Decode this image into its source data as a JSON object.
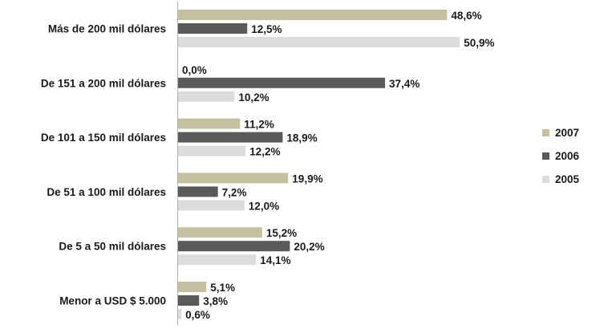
{
  "chart_data": {
    "type": "bar",
    "orientation": "horizontal",
    "categories": [
      "Más de 200 mil dólares",
      "De 151 a 200 mil dólares",
      "De 101 a 150 mil dólares",
      "De 51 a 100 mil dólares",
      "De 5 a 50 mil dólares",
      "Menor a USD $ 5.000"
    ],
    "series": [
      {
        "name": "2007",
        "color": "#c6c0a0",
        "values": [
          48.6,
          0.0,
          11.2,
          19.9,
          15.2,
          5.1
        ],
        "labels": [
          "48,6%",
          "0,0%",
          "11,2%",
          "19,9%",
          "15,2%",
          "5,1%"
        ]
      },
      {
        "name": "2006",
        "color": "#5a5a5a",
        "values": [
          12.5,
          37.4,
          18.9,
          7.2,
          20.2,
          3.8
        ],
        "labels": [
          "12,5%",
          "37,4%",
          "18,9%",
          "7,2%",
          "20,2%",
          "3,8%"
        ]
      },
      {
        "name": "2005",
        "color": "#dcdcdc",
        "values": [
          50.9,
          10.2,
          12.2,
          12.0,
          14.1,
          0.6
        ],
        "labels": [
          "50,9%",
          "10,2%",
          "12,2%",
          "12,0%",
          "14,1%",
          "0,6%"
        ]
      }
    ],
    "title": "",
    "xlabel": "",
    "ylabel": "",
    "xlim": [
      0,
      60
    ],
    "grid": false,
    "legend_position": "right"
  }
}
